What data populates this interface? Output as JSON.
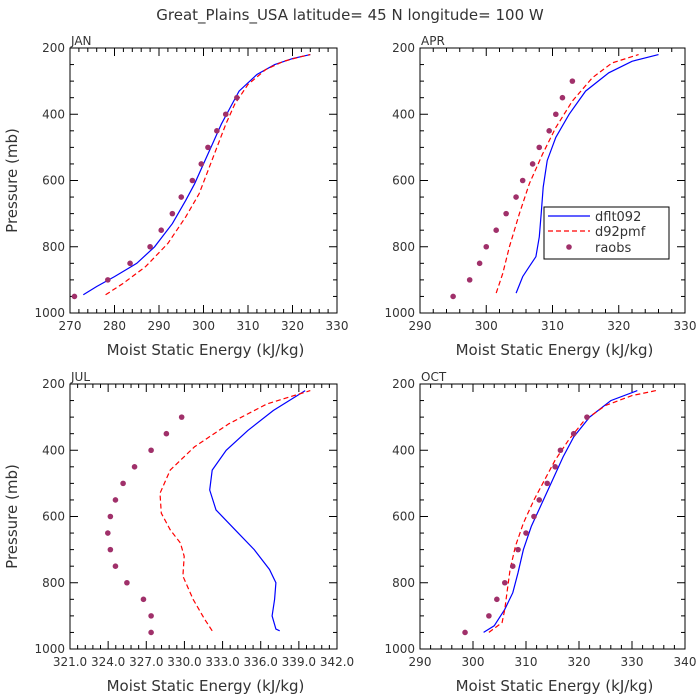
{
  "title": "Great_Plains_USA   latitude= 45 N longitude= 100 W",
  "colors": {
    "dflt092": "#0000ff",
    "d92pmf": "#ff0000",
    "raobs": "#a0306a"
  },
  "legend": {
    "entries": [
      {
        "name": "dflt092",
        "style": "solid",
        "color": "#0000ff"
      },
      {
        "name": "d92pmf",
        "style": "dashed",
        "color": "#ff0000"
      },
      {
        "name": "raobs",
        "style": "dots",
        "color": "#a0306a"
      }
    ]
  },
  "chart_data": [
    {
      "panel": "JAN",
      "type": "line",
      "xlabel": "Moist Static Energy (kJ/kg)",
      "ylabel": "Pressure (mb)",
      "xlim": [
        270,
        330
      ],
      "ylim": [
        1000,
        200
      ],
      "xticks": [
        "270",
        "280",
        "290",
        "300",
        "310",
        "320",
        "330"
      ],
      "yticks": [
        "200",
        "400",
        "600",
        "800",
        "1000"
      ],
      "series": [
        {
          "name": "dflt092",
          "style": "solid",
          "x": [
            273,
            276,
            280,
            285,
            289,
            293,
            296,
            298,
            300,
            302,
            304,
            306,
            308,
            312,
            316,
            320,
            324
          ],
          "y": [
            945,
            920,
            890,
            850,
            800,
            730,
            660,
            610,
            550,
            490,
            430,
            380,
            330,
            280,
            250,
            232,
            220
          ]
        },
        {
          "name": "d92pmf",
          "style": "dashed",
          "x": [
            278,
            282,
            287,
            292,
            296,
            299,
            301,
            303,
            305,
            307,
            310,
            314,
            318,
            322,
            324
          ],
          "y": [
            945,
            910,
            860,
            790,
            710,
            640,
            570,
            500,
            430,
            370,
            310,
            265,
            240,
            226,
            220
          ]
        },
        {
          "name": "raobs",
          "style": "dots",
          "x": [
            271,
            278.5,
            283.5,
            288,
            290.5,
            293,
            295,
            297.5,
            299.5,
            301,
            303,
            305,
            307.5
          ],
          "y": [
            950,
            900,
            850,
            800,
            750,
            700,
            650,
            600,
            550,
            500,
            450,
            400,
            350
          ]
        }
      ]
    },
    {
      "panel": "APR",
      "type": "line",
      "xlabel": "Moist Static Energy (kJ/kg)",
      "ylabel": "",
      "xlim": [
        290,
        330
      ],
      "ylim": [
        1000,
        200
      ],
      "xticks": [
        "290",
        "300",
        "310",
        "320",
        "330"
      ],
      "yticks": [
        "200",
        "400",
        "600",
        "800",
        "1000"
      ],
      "legend_position": "right",
      "series": [
        {
          "name": "dflt092",
          "style": "solid",
          "x": [
            304.5,
            305.5,
            306.5,
            307.5,
            308,
            308.3,
            308.6,
            309.2,
            310.5,
            312.5,
            315,
            318.5,
            322,
            326
          ],
          "y": [
            940,
            890,
            860,
            830,
            770,
            700,
            620,
            540,
            470,
            400,
            330,
            275,
            240,
            220
          ]
        },
        {
          "name": "d92pmf",
          "style": "dashed",
          "x": [
            301.5,
            302.5,
            303.5,
            305,
            306.5,
            308.5,
            310.5,
            313,
            316,
            319,
            323
          ],
          "y": [
            940,
            880,
            800,
            700,
            610,
            520,
            440,
            360,
            290,
            245,
            220
          ]
        },
        {
          "name": "raobs",
          "style": "dots",
          "x": [
            295,
            297.5,
            299,
            300,
            301.5,
            303,
            304.5,
            305.5,
            307,
            308,
            309.5,
            310.5,
            311.5,
            313
          ],
          "y": [
            950,
            900,
            850,
            800,
            750,
            700,
            650,
            600,
            550,
            500,
            450,
            400,
            350,
            300
          ]
        }
      ]
    },
    {
      "panel": "JUL",
      "type": "line",
      "xlabel": "Moist Static Energy (kJ/kg)",
      "ylabel": "Pressure (mb)",
      "xlim": [
        321.03,
        342.0
      ],
      "ylim": [
        1000,
        200
      ],
      "xticks": [
        "321.0",
        "324.0",
        "327.0",
        "330.0",
        "333.0",
        "336.0",
        "339.0",
        "342.0"
      ],
      "yticks": [
        "200",
        "400",
        "600",
        "800",
        "1000"
      ],
      "series": [
        {
          "name": "dflt092",
          "style": "solid",
          "x": [
            337.5,
            337.2,
            336.9,
            337.1,
            337.2,
            336.7,
            335.5,
            334,
            332.5,
            332,
            332.2,
            333.3,
            335,
            337,
            339.5
          ],
          "y": [
            945,
            940,
            900,
            850,
            800,
            760,
            700,
            640,
            580,
            520,
            460,
            400,
            340,
            280,
            220
          ]
        },
        {
          "name": "d92pmf",
          "style": "dashed",
          "x": [
            332.2,
            331.6,
            330.7,
            329.9,
            330.0,
            329.7,
            328.9,
            328.2,
            328.1,
            328.9,
            330.8,
            333.5,
            336.5,
            339.9
          ],
          "y": [
            945,
            910,
            850,
            780,
            720,
            680,
            640,
            590,
            530,
            460,
            390,
            320,
            260,
            220
          ]
        },
        {
          "name": "raobs",
          "style": "dots",
          "x": [
            327.4,
            327.4,
            326.8,
            325.5,
            324.6,
            324.2,
            324.0,
            324.2,
            324.6,
            325.2,
            326.1,
            327.4,
            328.6,
            329.8
          ],
          "y": [
            950,
            900,
            850,
            800,
            750,
            700,
            650,
            600,
            550,
            500,
            450,
            400,
            350,
            300
          ]
        }
      ]
    },
    {
      "panel": "OCT",
      "type": "line",
      "xlabel": "Moist Static Energy (kJ/kg)",
      "ylabel": "",
      "xlim": [
        290,
        340
      ],
      "ylim": [
        1000,
        200
      ],
      "xticks": [
        "290",
        "300",
        "310",
        "320",
        "330",
        "340"
      ],
      "yticks": [
        "200",
        "400",
        "600",
        "800",
        "1000"
      ],
      "series": [
        {
          "name": "dflt092",
          "style": "solid",
          "x": [
            302,
            304,
            306,
            307.5,
            308.5,
            309.5,
            311,
            313,
            315,
            317,
            319,
            322,
            326,
            331
          ],
          "y": [
            950,
            930,
            880,
            830,
            770,
            700,
            630,
            560,
            490,
            420,
            360,
            300,
            250,
            220
          ]
        },
        {
          "name": "d92pmf",
          "style": "dashed",
          "x": [
            303,
            305.5,
            306,
            306.5,
            307,
            308,
            309.5,
            311.5,
            313.5,
            315.5,
            318,
            321,
            325,
            330,
            334.5
          ],
          "y": [
            950,
            920,
            880,
            820,
            760,
            690,
            620,
            550,
            490,
            430,
            370,
            310,
            265,
            235,
            220
          ]
        },
        {
          "name": "raobs",
          "style": "dots",
          "x": [
            298.5,
            303,
            304.5,
            306,
            307.5,
            308.5,
            310,
            311.5,
            312.5,
            314,
            315.5,
            316.5,
            319,
            321.5
          ],
          "y": [
            950,
            900,
            850,
            800,
            750,
            700,
            650,
            600,
            550,
            500,
            450,
            400,
            350,
            300
          ]
        }
      ]
    }
  ]
}
